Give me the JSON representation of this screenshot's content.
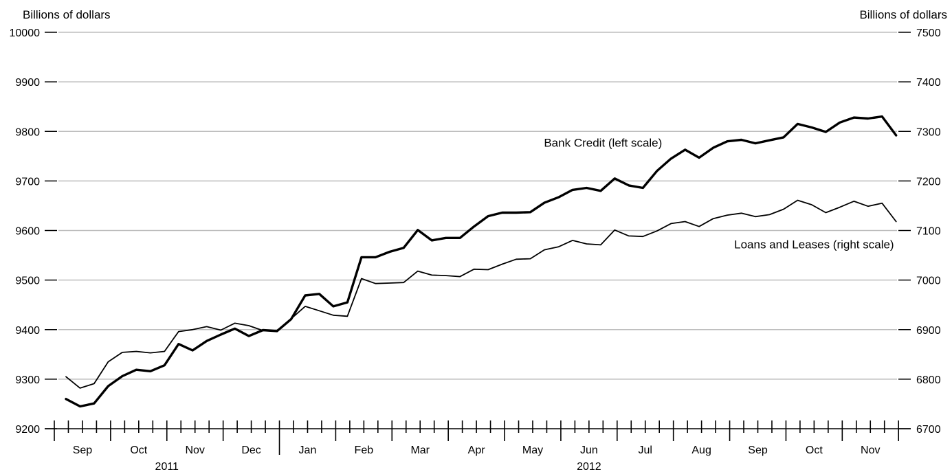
{
  "chart_data": {
    "type": "line",
    "left_axis": {
      "title": "Billions of dollars",
      "ylim": [
        9200,
        10000
      ],
      "ticks": [
        9200,
        9300,
        9400,
        9500,
        9600,
        9700,
        9800,
        9900,
        10000
      ]
    },
    "right_axis": {
      "title": "Billions of dollars",
      "ylim": [
        6700,
        7500
      ],
      "ticks": [
        6700,
        6800,
        6900,
        7000,
        7100,
        7200,
        7300,
        7400,
        7500
      ]
    },
    "grid": true,
    "x_axis": {
      "weeks_total": 60,
      "months": [
        {
          "label": "Sep",
          "start_week": 0,
          "weeks": 4
        },
        {
          "label": "Oct",
          "start_week": 4,
          "weeks": 4
        },
        {
          "label": "Nov",
          "start_week": 8,
          "weeks": 4
        },
        {
          "label": "Dec",
          "start_week": 12,
          "weeks": 4
        },
        {
          "label": "Jan",
          "start_week": 16,
          "weeks": 4
        },
        {
          "label": "Feb",
          "start_week": 20,
          "weeks": 4
        },
        {
          "label": "Mar",
          "start_week": 24,
          "weeks": 4
        },
        {
          "label": "Apr",
          "start_week": 28,
          "weeks": 4
        },
        {
          "label": "May",
          "start_week": 32,
          "weeks": 4
        },
        {
          "label": "Jun",
          "start_week": 36,
          "weeks": 4
        },
        {
          "label": "Jul",
          "start_week": 40,
          "weeks": 4
        },
        {
          "label": "Aug",
          "start_week": 44,
          "weeks": 4
        },
        {
          "label": "Sep",
          "start_week": 48,
          "weeks": 4
        },
        {
          "label": "Oct",
          "start_week": 52,
          "weeks": 4
        },
        {
          "label": "Nov",
          "start_week": 56,
          "weeks": 4
        }
      ],
      "years": [
        {
          "label": "2011",
          "start_week": 0,
          "end_week": 16
        },
        {
          "label": "2012",
          "start_week": 16,
          "end_week": 60
        }
      ]
    },
    "series": [
      {
        "name": "Bank Credit (left scale)",
        "axis": "left",
        "line_width": 3.4,
        "values": [
          9260,
          9245,
          9251,
          9286,
          9306,
          9319,
          9316,
          9328,
          9371,
          9358,
          9377,
          9390,
          9402,
          9387,
          9399,
          9397,
          9421,
          9469,
          9472,
          9447,
          9455,
          9546,
          9546,
          9557,
          9565,
          9601,
          9580,
          9585,
          9585,
          9608,
          9629,
          9636,
          9636,
          9637,
          9656,
          9667,
          9682,
          9686,
          9680,
          9705,
          9691,
          9686,
          9720,
          9745,
          9763,
          9747,
          9767,
          9780,
          9783,
          9776,
          9782,
          9788,
          9815,
          9808,
          9799,
          9818,
          9828,
          9826,
          9830,
          9792
        ]
      },
      {
        "name": "Loans and Leases (right scale)",
        "axis": "right",
        "line_width": 1.8,
        "values": [
          6805,
          6782,
          6791,
          6835,
          6854,
          6856,
          6853,
          6856,
          6896,
          6900,
          6906,
          6899,
          6913,
          6908,
          6898,
          6898,
          6922,
          6947,
          6938,
          6929,
          6927,
          7003,
          6993,
          6994,
          6995,
          7018,
          7010,
          7009,
          7007,
          7022,
          7021,
          7032,
          7042,
          7043,
          7061,
          7067,
          7080,
          7073,
          7071,
          7101,
          7089,
          7088,
          7099,
          7114,
          7118,
          7108,
          7124,
          7131,
          7135,
          7128,
          7132,
          7143,
          7161,
          7152,
          7136,
          7147,
          7159,
          7149,
          7155,
          7118
        ]
      }
    ],
    "annotations": [
      {
        "text": "Bank Credit (left scale)",
        "at_week": 39,
        "at_value": 9780,
        "axis": "left"
      },
      {
        "text": "Loans and Leases (right scale)",
        "at_week": 54,
        "at_value": 7075,
        "axis": "right"
      }
    ]
  }
}
